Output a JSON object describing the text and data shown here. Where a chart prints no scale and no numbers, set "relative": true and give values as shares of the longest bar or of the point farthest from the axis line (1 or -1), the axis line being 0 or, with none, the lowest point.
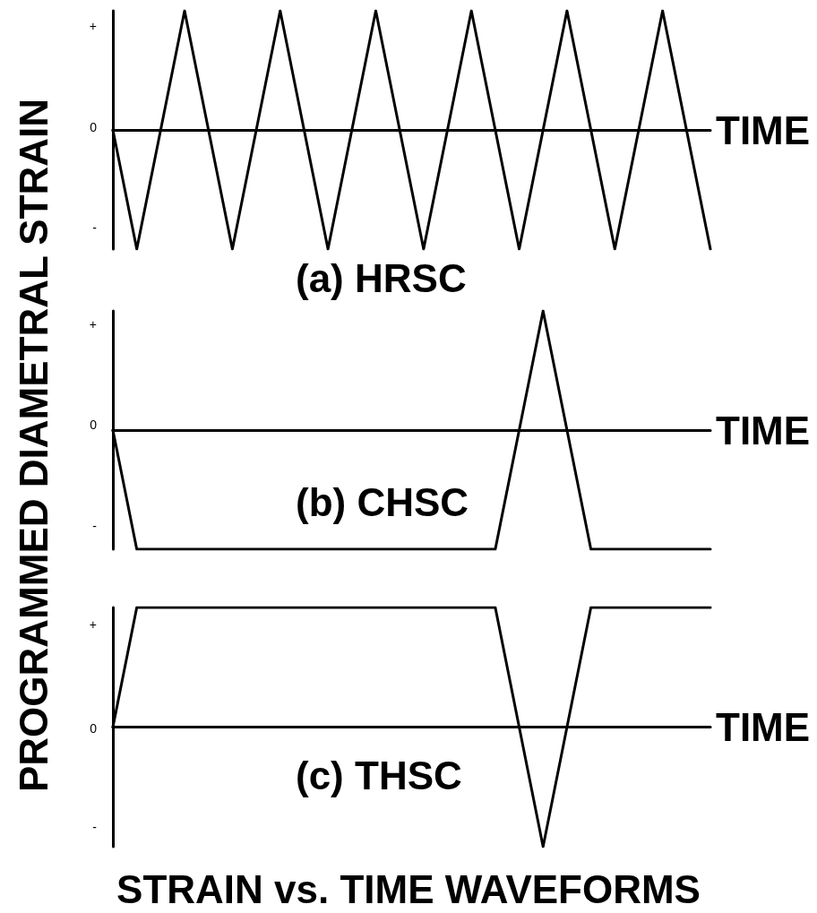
{
  "chart_data": [
    {
      "type": "line",
      "title": "(a) HRSC",
      "xlabel": "TIME",
      "relative": true,
      "marker": "none",
      "line_style": "solid",
      "color": "#000000",
      "annotations": [
        "+",
        "0",
        "-"
      ],
      "categories": [
        null,
        null,
        null,
        null,
        null,
        null,
        null,
        null,
        null,
        null,
        null,
        null,
        null,
        null,
        null,
        null,
        null,
        null,
        null,
        null,
        null,
        null,
        null,
        null,
        null,
        null
      ],
      "values": [
        0,
        -1,
        0,
        1,
        0,
        -1,
        0,
        1,
        0,
        -1,
        0,
        1,
        0,
        -1,
        0,
        1,
        0,
        -1,
        0,
        1,
        0,
        -1,
        0,
        1,
        0,
        -1
      ]
    },
    {
      "type": "line",
      "title": "(b) CHSC",
      "xlabel": "TIME",
      "ylabel": "PROGRAMMED DIAMETRAL STRAIN",
      "relative": true,
      "marker": "none",
      "line_style": "solid",
      "color": "#000000",
      "annotations": [
        "+",
        "0",
        "-"
      ],
      "categories": [
        null,
        null,
        null,
        null,
        null,
        null,
        null,
        null,
        null,
        null,
        null,
        null,
        null,
        null,
        null,
        null,
        null,
        null,
        null,
        null,
        null,
        null,
        null,
        null,
        null,
        null
      ],
      "values": [
        0,
        -1,
        -1,
        -1,
        -1,
        -1,
        -1,
        -1,
        -1,
        -1,
        -1,
        -1,
        -1,
        -1,
        -1,
        -1,
        -1,
        0,
        1,
        0,
        -1,
        -1,
        -1,
        -1,
        -1,
        -1
      ]
    },
    {
      "type": "line",
      "title": "(c) THSC",
      "xlabel": "TIME",
      "relative": true,
      "marker": "none",
      "line_style": "solid",
      "color": "#000000",
      "annotations": [
        "+",
        "0",
        "-",
        "STRAIN vs. TIME WAVEFORMS"
      ],
      "categories": [
        null,
        null,
        null,
        null,
        null,
        null,
        null,
        null,
        null,
        null,
        null,
        null,
        null,
        null,
        null,
        null,
        null,
        null,
        null,
        null,
        null,
        null,
        null,
        null,
        null,
        null
      ],
      "values": [
        0,
        1,
        1,
        1,
        1,
        1,
        1,
        1,
        1,
        1,
        1,
        1,
        1,
        1,
        1,
        1,
        1,
        0,
        -1,
        0,
        1,
        1,
        1,
        1,
        1,
        1
      ]
    }
  ]
}
